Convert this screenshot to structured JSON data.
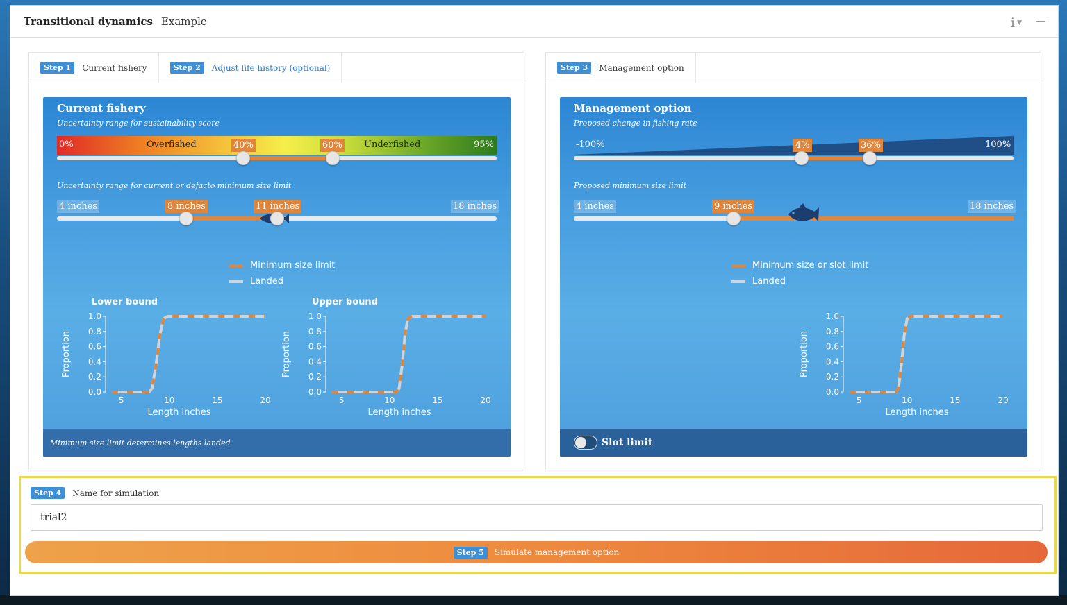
{
  "app": {
    "title": "Transitional dynamics",
    "subtitle": "Example",
    "info_label": "i"
  },
  "left_panel": {
    "tabs": [
      {
        "step": "Step 1",
        "label": "Current fishery"
      },
      {
        "step": "Step 2",
        "label": "Adjust life history (optional)"
      }
    ],
    "card": {
      "title": "Current fishery",
      "score_caption": "Uncertainty range for sustainability score",
      "score": {
        "min_label": "0%",
        "max_label": "95%",
        "low_label": "40%",
        "high_label": "60%",
        "low_value": 40,
        "high_value": 60,
        "scale_max": 95,
        "overfished_label": "Overfished",
        "underfished_label": "Underfished"
      },
      "size_caption": "Uncertainty range for current or defacto minimum size limit",
      "size": {
        "min_label": "4 inches",
        "max_label": "18 inches",
        "low_label": "8 inches",
        "high_label": "11 inches",
        "min": 4,
        "max": 18,
        "low": 8,
        "high": 11
      },
      "legend": {
        "min_size": "Minimum size limit",
        "landed": "Landed"
      },
      "footer": "Minimum size limit determines lengths landed"
    }
  },
  "right_panel": {
    "tabs": [
      {
        "step": "Step 3",
        "label": "Management option"
      }
    ],
    "card": {
      "title": "Management option",
      "rate_caption": "Proposed change in fishing rate",
      "rate": {
        "min_label": "-100%",
        "max_label": "100%",
        "low_label": "4%",
        "high_label": "36%",
        "min": -100,
        "max": 100,
        "low": 4,
        "high": 36
      },
      "size_caption": "Proposed minimum size limit",
      "size": {
        "min_label": "4 inches",
        "max_label": "18 inches",
        "value_label": "9 inches",
        "min": 4,
        "max": 18,
        "value": 9
      },
      "legend": {
        "min_size": "Minimum size or slot limit",
        "landed": "Landed"
      },
      "slot_limit_label": "Slot limit"
    }
  },
  "step4": {
    "step": "Step 4",
    "label": "Name for simulation",
    "input_value": "trial2"
  },
  "step5": {
    "step": "Step 5",
    "label": "Simulate management option"
  },
  "colors": {
    "accent": "#3d8fd6",
    "orange": "#e0863a",
    "landed": "#d0d4da"
  },
  "chart_data": [
    {
      "type": "line",
      "title": "Lower bound",
      "xlabel": "Length inches",
      "ylabel": "Proportion",
      "xlim": [
        3.5,
        20
      ],
      "ylim": [
        0,
        1
      ],
      "xticks": [
        5,
        10,
        15,
        20
      ],
      "yticks": [
        0.0,
        0.2,
        0.4,
        0.6,
        0.8,
        1.0
      ],
      "series": [
        {
          "name": "Minimum size limit",
          "x": [
            4,
            7.9,
            8.2,
            8.6,
            9.0,
            9.4,
            9.8,
            20
          ],
          "y": [
            0,
            0,
            0.05,
            0.35,
            0.75,
            0.97,
            1,
            1
          ]
        },
        {
          "name": "Landed",
          "x": [
            4,
            7.9,
            8.2,
            8.6,
            9.0,
            9.4,
            9.8,
            20
          ],
          "y": [
            0,
            0,
            0.05,
            0.35,
            0.75,
            0.97,
            1,
            1
          ]
        }
      ]
    },
    {
      "type": "line",
      "title": "Upper bound",
      "xlabel": "Length inches",
      "ylabel": "Proportion",
      "xlim": [
        3.5,
        20
      ],
      "ylim": [
        0,
        1
      ],
      "xticks": [
        5,
        10,
        15,
        20
      ],
      "yticks": [
        0.0,
        0.2,
        0.4,
        0.6,
        0.8,
        1.0
      ],
      "series": [
        {
          "name": "Minimum size limit",
          "x": [
            4,
            10.7,
            11.0,
            11.3,
            11.6,
            11.9,
            12.3,
            20
          ],
          "y": [
            0,
            0,
            0.05,
            0.35,
            0.75,
            0.97,
            1,
            1
          ]
        },
        {
          "name": "Landed",
          "x": [
            4,
            10.7,
            11.0,
            11.3,
            11.6,
            11.9,
            12.3,
            20
          ],
          "y": [
            0,
            0,
            0.05,
            0.35,
            0.75,
            0.97,
            1,
            1
          ]
        }
      ]
    },
    {
      "type": "line",
      "title": "",
      "xlabel": "Length inches",
      "ylabel": "Proportion",
      "xlim": [
        3.5,
        20
      ],
      "ylim": [
        0,
        1
      ],
      "xticks": [
        5,
        10,
        15,
        20
      ],
      "yticks": [
        0.0,
        0.2,
        0.4,
        0.6,
        0.8,
        1.0
      ],
      "series": [
        {
          "name": "Minimum size or slot limit",
          "x": [
            4,
            8.8,
            9.1,
            9.4,
            9.7,
            10.0,
            10.4,
            20
          ],
          "y": [
            0,
            0,
            0.05,
            0.35,
            0.75,
            0.97,
            1,
            1
          ]
        },
        {
          "name": "Landed",
          "x": [
            4,
            8.8,
            9.1,
            9.4,
            9.7,
            10.0,
            10.4,
            20
          ],
          "y": [
            0,
            0,
            0.05,
            0.35,
            0.75,
            0.97,
            1,
            1
          ]
        }
      ]
    }
  ]
}
